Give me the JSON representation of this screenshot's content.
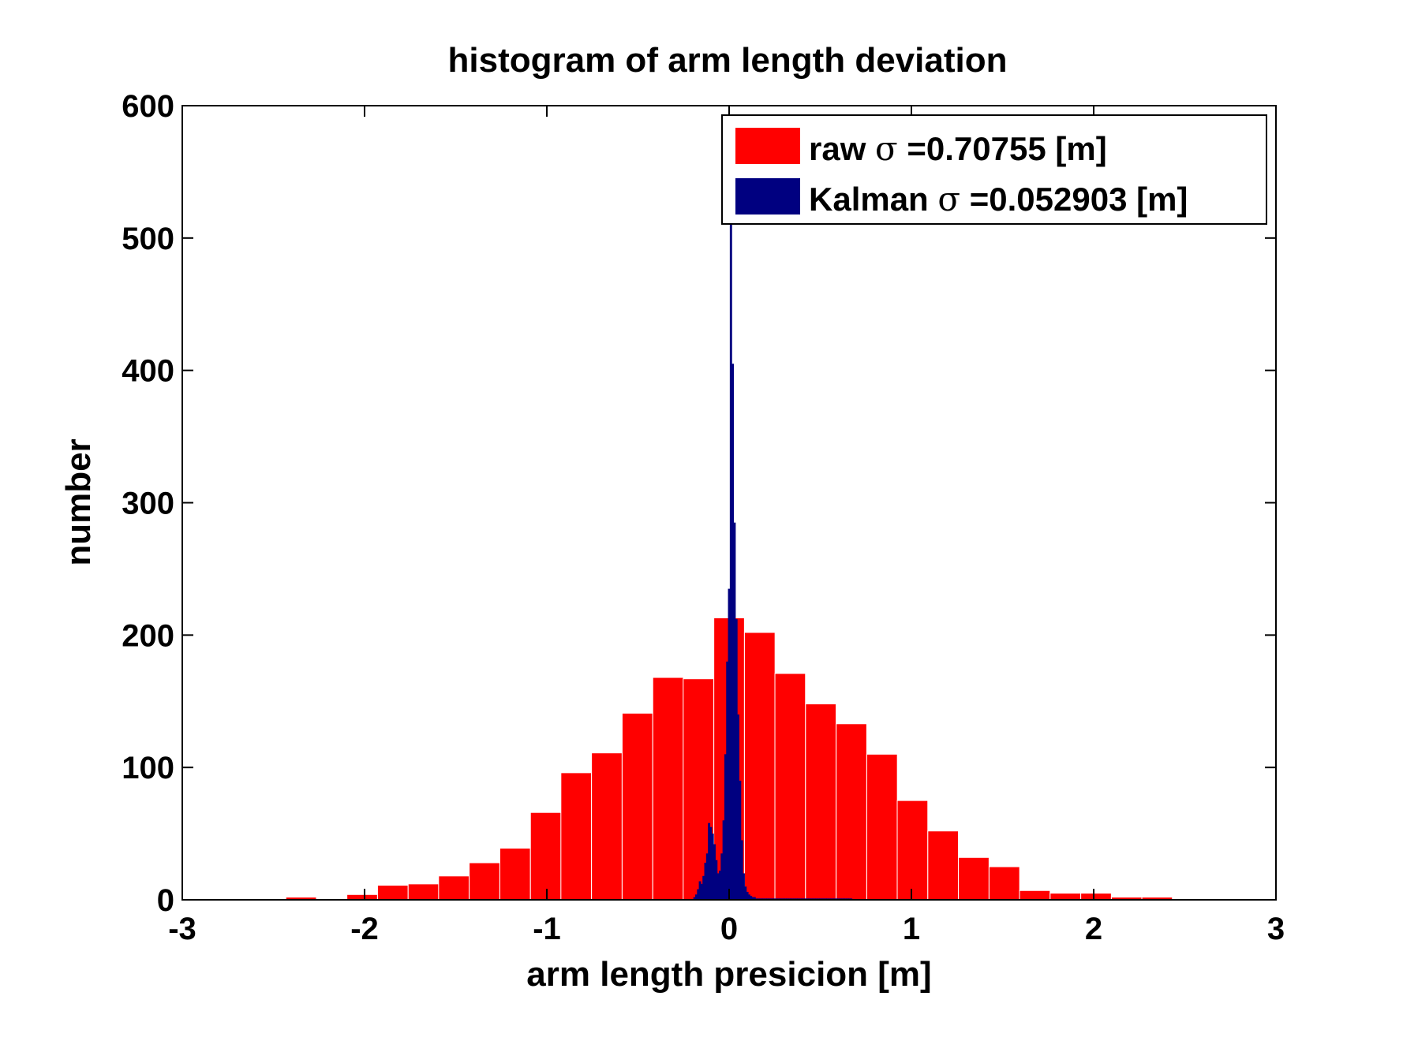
{
  "chart_data": {
    "type": "bar",
    "title": "histogram of arm length deviation",
    "xlabel": "arm length presicion [m]",
    "ylabel": "number",
    "xlim": [
      -3,
      3
    ],
    "ylim": [
      0,
      600
    ],
    "xticks": [
      -3,
      -2,
      -1,
      0,
      1,
      2,
      3
    ],
    "yticks": [
      0,
      100,
      200,
      300,
      400,
      500,
      600
    ],
    "xtick_labels": [
      "-3",
      "-2",
      "-1",
      "0",
      "1",
      "2",
      "3"
    ],
    "ytick_labels": [
      "0",
      "100",
      "200",
      "300",
      "400",
      "500",
      "600"
    ],
    "grid": false,
    "legend": {
      "placement": "top-right",
      "entries": [
        {
          "name": "raw",
          "sigma_symbol": "σ",
          "text": " =0.70755 [m]"
        },
        {
          "name": "Kalman",
          "sigma_symbol": "σ",
          "text": " =0.052903 [m]"
        }
      ]
    },
    "colors": {
      "raw": "#ff0000",
      "kalman": "#000080",
      "axes": "#000000",
      "bar_edge": "#ffffff"
    },
    "series": [
      {
        "name": "raw",
        "bin_width": 0.1677,
        "bin_centers": [
          -2.348,
          -2.181,
          -2.013,
          -1.845,
          -1.677,
          -1.51,
          -1.342,
          -1.174,
          -1.006,
          -0.839,
          -0.671,
          -0.503,
          -0.335,
          -0.168,
          0.0,
          0.168,
          0.335,
          0.503,
          0.671,
          0.839,
          1.006,
          1.174,
          1.342,
          1.51,
          1.677,
          1.845,
          2.013,
          2.181,
          2.348
        ],
        "values": [
          2,
          0,
          4,
          11,
          12,
          18,
          28,
          39,
          66,
          96,
          111,
          141,
          168,
          167,
          213,
          202,
          171,
          148,
          133,
          110,
          75,
          52,
          32,
          25,
          7,
          5,
          5,
          2,
          2
        ]
      },
      {
        "name": "Kalman",
        "bin_width": 0.0125,
        "bin_centers": [
          -0.19,
          -0.18,
          -0.17,
          -0.16,
          -0.15,
          -0.14,
          -0.13,
          -0.12,
          -0.11,
          -0.1,
          -0.09,
          -0.08,
          -0.07,
          -0.06,
          -0.05,
          -0.04,
          -0.03,
          -0.02,
          -0.01,
          0.0,
          0.01,
          0.02,
          0.03,
          0.04,
          0.05,
          0.06,
          0.07,
          0.08,
          0.09,
          0.1,
          0.11,
          0.12,
          0.13,
          0.14,
          0.15,
          0.16,
          0.17,
          0.18,
          0.19,
          0.2,
          0.21,
          0.22,
          0.23,
          0.24,
          0.25,
          0.26,
          0.27,
          0.28,
          0.29,
          0.3,
          0.31,
          0.32,
          0.33,
          0.34,
          0.35,
          0.36,
          0.37,
          0.38,
          0.39,
          0.4,
          0.41,
          0.42,
          0.43,
          0.44,
          0.45,
          0.46,
          0.47,
          0.48,
          0.49,
          0.5,
          0.51,
          0.52,
          0.53,
          0.54,
          0.55,
          0.56,
          0.57,
          0.58,
          0.59,
          0.6,
          0.61,
          0.62,
          0.63,
          0.64,
          0.65,
          0.66,
          0.67
        ],
        "values": [
          2,
          4,
          8,
          14,
          12,
          18,
          28,
          35,
          58,
          55,
          50,
          42,
          30,
          20,
          22,
          35,
          60,
          110,
          180,
          235,
          520,
          405,
          285,
          212,
          140,
          90,
          45,
          20,
          10,
          6,
          4,
          3,
          2,
          2,
          1,
          1,
          1,
          1,
          1,
          1,
          1,
          1,
          1,
          1,
          1,
          1,
          1,
          1,
          1,
          1,
          1,
          1,
          1,
          1,
          1,
          1,
          1,
          1,
          1,
          1,
          1,
          1,
          1,
          1,
          1,
          1,
          1,
          1,
          1,
          1,
          1,
          1,
          1,
          1,
          1,
          1,
          1,
          1,
          1,
          1,
          1,
          1,
          1,
          1,
          1,
          1,
          1
        ]
      }
    ]
  }
}
